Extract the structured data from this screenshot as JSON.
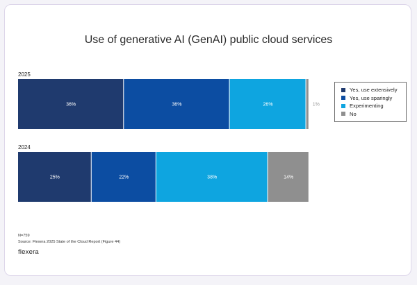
{
  "chart_data": {
    "type": "bar",
    "orientation": "horizontal",
    "stacked": true,
    "title": "Use of generative AI (GenAI) public cloud services",
    "categories": [
      "2025",
      "2024"
    ],
    "series": [
      {
        "name": "Yes, use extensively",
        "color": "#1f3a6e",
        "values": [
          36,
          25
        ]
      },
      {
        "name": "Yes, use sparingly",
        "color": "#0c4da2",
        "values": [
          36,
          22
        ]
      },
      {
        "name": "Experimenting",
        "color": "#0ea5e0",
        "values": [
          26,
          38
        ]
      },
      {
        "name": "No",
        "color": "#8f8f8f",
        "values": [
          1,
          14
        ]
      }
    ],
    "value_suffix": "%",
    "xlim": [
      0,
      100
    ],
    "legend_position": "right"
  },
  "notes": {
    "sample": "N=759",
    "source": "Source: Flexera 2025 State of the Cloud Report (Figure 44)"
  },
  "brand": "flexera"
}
